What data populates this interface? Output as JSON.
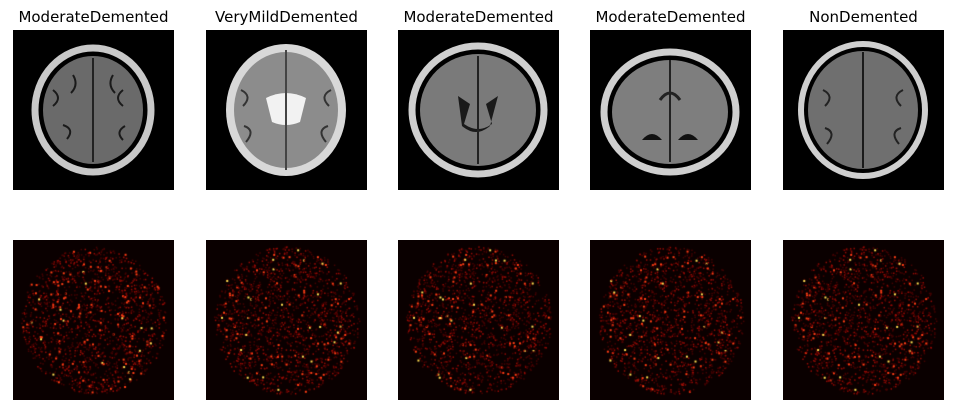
{
  "figure": {
    "columns": [
      {
        "title": "ModerateDemented"
      },
      {
        "title": "VeryMildDemented"
      },
      {
        "title": "ModerateDemented"
      },
      {
        "title": "ModerateDemented"
      },
      {
        "title": "NonDemented"
      }
    ]
  },
  "colors": {
    "background": "#ffffff",
    "mri_background": "#000000",
    "heatmap_background": "#0a0000",
    "heatmap_low": "#5a0000",
    "heatmap_high": "#ffd000"
  }
}
